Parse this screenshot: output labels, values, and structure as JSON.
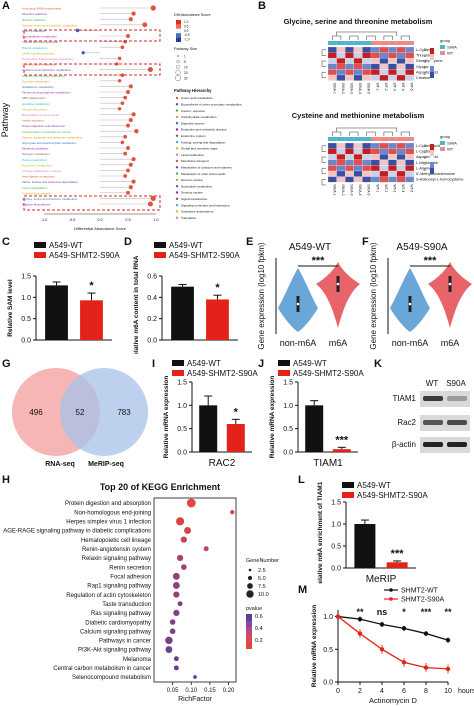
{
  "panel_labels": {
    "A": "A",
    "B": "B",
    "C": "C",
    "D": "D",
    "E": "E",
    "F": "F",
    "G": "G",
    "H": "H",
    "I": "I",
    "J": "J",
    "K": "K",
    "L": "L",
    "M": "M"
  },
  "colors": {
    "wt": "#111111",
    "mut": "#e32219",
    "red": "#e32219",
    "violin_blue": "#6aa6d8",
    "violin_red": "#e8636a",
    "venn_left": "#f4a9a8",
    "venn_right": "#a7c2ea",
    "dot_high": "#e2463c",
    "dot_low": "#5b3fa0"
  },
  "legend": {
    "wt": "A549-WT",
    "mut": "A549-SHMT2-S90A",
    "shmt2_wt": "SHMT2-WT",
    "shmt2_mut": "SHMT2-S90A"
  },
  "panelA": {
    "ylabel": "Pathway",
    "xlabel": "Differential Abundance Score",
    "xticks": [
      "-1.0",
      "-0.5",
      "0.0",
      "0.5",
      "1.0"
    ],
    "legend_title1": "Diff Abundance Score",
    "legend_scale": [
      "1.0",
      "0.5",
      "0.0",
      "-0.5",
      "-1.0"
    ],
    "legend_title2": "Pathway Size",
    "size_legend": [
      "1",
      "5",
      "10",
      "20",
      "30"
    ],
    "hierarchy_title": "Pathway Hierarchy",
    "hierarchy": [
      "Amino acid metabolism",
      "Biosynthesis of other secondary metabolites",
      "Cancer: overview",
      "Carbohydrate metabolism",
      "Digestive system",
      "Endocrine and metabolic disease",
      "Endocrine system",
      "Folding, sorting and degradation",
      "Global and overview maps",
      "Lipid metabolism",
      "Membrane transport",
      "Metabolism of cofactors and vitamins",
      "Metabolism of other amino acids",
      "Nervous system",
      "Nucleotide metabolism",
      "Sensory system",
      "Signal transduction",
      "Signaling molecules and interaction",
      "Substance dependence",
      "Translation"
    ],
    "pathways": [
      "Aminoacyl-tRNA biosynthesis",
      "Morphine addiction",
      "Nicotine addiction",
      "Glycine, serine and threonine metabolism",
      "Sulfur metabolism",
      "Phenylalanine metabolism",
      "Thyroid hormone synthesis",
      "Phenyl metabolism",
      "cAMP signaling pathway",
      "Neuroactive ligand-receptor interaction",
      "D-Amino acid metabolism",
      "Cysteine and methionine metabolism",
      "Arginine and proline metabolism",
      "Tyrosine metabolism",
      "Glutathione metabolism",
      "Taurine and hypotaurine metabolism",
      "ABC transporters",
      "Histidine metabolism",
      "Mineral absorption",
      "Biosynthesis of amino acids",
      "Insulin secretion",
      "Protein digestion and absorption",
      "Central carbon metabolism in cancer",
      "Alanine, aspartate and glutamate metabolism",
      "Glyoxylate and dicarboxylate metabolism",
      "Metabolic pathways",
      "Nitrogen metabolism",
      "Purine metabolism",
      "Pyrimidine metabolism",
      "Choline metabolism in cancer",
      "beta-Alanine metabolism",
      "Valine, leucine and isoleucine degradation",
      "Lysine degradation",
      "Arginine biosynthesis",
      "Glycine, serine and threonine metabolism",
      "Arginine biosynthesis"
    ]
  },
  "panelB": {
    "title1": "Glycine, serine and threonine metabolism",
    "title2": "Cysteine and methionine metabolism",
    "group_title": "group",
    "groups": [
      "S90A",
      "WT"
    ],
    "rows1": [
      "L-Cysteine",
      "Threonine",
      "Dimethylglycine",
      "Glycine",
      "Aspartic acid",
      "Creatine"
    ],
    "rows2": [
      "L-Cysteic acid",
      "L-Cysteine",
      "Aspartic acid",
      "L-Methionine",
      "L-Alanine",
      "5'-Methylthioadenosine",
      "S-Adenosyl-L-homocysteine"
    ],
    "cols": [
      "S90A-1",
      "S90A-2",
      "S90A-3",
      "S90A-4",
      "S90A-5",
      "WT-1",
      "WT-2",
      "WT-3",
      "WT-4",
      "WT-5"
    ],
    "scale": [
      "2",
      "1",
      "0",
      "-1",
      "-2"
    ]
  },
  "chart_data": [
    {
      "type": "bar",
      "panel": "C",
      "categories": [
        "A549-WT",
        "A549-SHMT2-S90A"
      ],
      "values": [
        1.28,
        0.93
      ],
      "errors": [
        0.08,
        0.17
      ],
      "ylabel": "Relative SAM level",
      "ylim": [
        0,
        1.5
      ],
      "yticks": [
        "0.0",
        "0.5",
        "1.0",
        "1.5"
      ],
      "annotations": [
        "*"
      ]
    },
    {
      "type": "bar",
      "panel": "D",
      "categories": [
        "A549-WT",
        "A549-SHMT2-S90A"
      ],
      "values": [
        0.5,
        0.38
      ],
      "errors": [
        0.02,
        0.04
      ],
      "ylabel": "Relative m6A content in total RNA",
      "ylim": [
        0,
        0.6
      ],
      "yticks": [
        "0.0",
        "0.2",
        "0.4",
        "0.6"
      ],
      "annotations": [
        "*"
      ]
    },
    {
      "type": "violin",
      "panel": "E",
      "title": "A549-WT",
      "categories": [
        "non-m6A",
        "m6A"
      ],
      "ylabel": "Gene expression (log10 fpkm)",
      "annotations": [
        "***"
      ]
    },
    {
      "type": "violin",
      "panel": "F",
      "title": "A549-S90A",
      "categories": [
        "non-m6A",
        "m6A"
      ],
      "ylabel": "Gene expression (log10 fpkm)",
      "annotations": [
        "***"
      ]
    },
    {
      "type": "venn",
      "panel": "G",
      "sets": [
        "RNA-seq",
        "MeRIP-seq"
      ],
      "values": [
        496,
        52,
        783
      ]
    },
    {
      "type": "bar",
      "panel": "I",
      "categories": [
        "A549-WT",
        "A549-SHMT2-S90A"
      ],
      "values": [
        1.0,
        0.6
      ],
      "errors": [
        0.2,
        0.1
      ],
      "xlabel": "RAC2",
      "ylabel": "Relative mRNA expression",
      "ylim": [
        0,
        1.5
      ],
      "yticks": [
        "0.0",
        "0.5",
        "1.0",
        "1.5"
      ],
      "annotations": [
        "*"
      ]
    },
    {
      "type": "bar",
      "panel": "J",
      "categories": [
        "A549-WT",
        "A549-SHMT2-S90A"
      ],
      "values": [
        1.0,
        0.06
      ],
      "errors": [
        0.1,
        0.04
      ],
      "xlabel": "TIAM1",
      "ylabel": "Relative mRNA expression",
      "ylim": [
        0,
        1.5
      ],
      "yticks": [
        "0.0",
        "0.5",
        "1.0",
        "1.5"
      ],
      "annotations": [
        "***"
      ]
    },
    {
      "type": "bar",
      "panel": "L",
      "categories": [
        "A549-WT",
        "A549-SHMT2-S90A"
      ],
      "values": [
        1.0,
        0.13
      ],
      "errors": [
        0.09,
        0.03
      ],
      "xlabel": "MeRIP",
      "ylabel": "Relative m6A enrichment of TIAM1",
      "ylim": [
        0,
        1.5
      ],
      "yticks": [
        "0.0",
        "0.5",
        "1.0",
        "1.5"
      ],
      "annotations": [
        "***"
      ]
    },
    {
      "type": "scatter",
      "panel": "H",
      "title": "Top 20 of KEGG Enrichment",
      "xlabel": "RichFactor",
      "xticks": [
        "0.05",
        "0.10",
        "0.15",
        "0.20"
      ],
      "xlim": [
        0,
        0.22
      ],
      "categories": [
        "Protein digestion and absorption",
        "Non-homologous end-joining",
        "Herpes simplex virus 1 infection",
        "AGE-RAGE signaling pathway in diabetic complications",
        "Hematopoietic cell lineage",
        "Renin-angiotensin system",
        "Relaxin signaling pathway",
        "Renin secretion",
        "Focal adhesion",
        "Rap1 signaling pathway",
        "Regulation of actin cytoskeleton",
        "Taste transduction",
        "Ras signaling pathway",
        "Diabetic cardiomyopathy",
        "Calcium signaling pathway",
        "Pathways in cancer",
        "PI3K-Akt signaling pathway",
        "Melanoma",
        "Central carbon metabolism in cancer",
        "Selenocompound metabolism"
      ],
      "x": [
        0.1,
        0.21,
        0.07,
        0.09,
        0.08,
        0.14,
        0.07,
        0.08,
        0.06,
        0.06,
        0.06,
        0.07,
        0.06,
        0.05,
        0.05,
        0.04,
        0.04,
        0.06,
        0.06,
        0.11
      ],
      "gene_number": [
        10,
        3,
        9,
        7,
        6,
        4,
        6,
        5,
        7,
        7,
        6,
        4,
        6,
        5,
        5,
        8,
        7,
        4,
        4,
        2
      ],
      "pvalue": [
        0.2,
        0.22,
        0.22,
        0.25,
        0.3,
        0.35,
        0.4,
        0.45,
        0.5,
        0.5,
        0.52,
        0.55,
        0.56,
        0.57,
        0.58,
        0.6,
        0.62,
        0.64,
        0.66,
        0.68
      ],
      "size_legend_title": "GeneNumber",
      "size_legend": [
        "2.5",
        "5.0",
        "7.5",
        "10.0"
      ],
      "color_legend_title": "pvalue",
      "color_legend": [
        "0.6",
        "0.4",
        "0.2"
      ]
    },
    {
      "type": "line",
      "panel": "M",
      "xlabel": "Actinomycin D",
      "xunit": "hours",
      "ylabel": "Relative mRNA expression",
      "x": [
        0,
        2,
        4,
        6,
        8,
        10
      ],
      "xticks": [
        "0",
        "2",
        "4",
        "6",
        "8",
        "10"
      ],
      "yticks": [
        "0.0",
        "0.5",
        "1.0"
      ],
      "ylim": [
        0,
        1.1
      ],
      "series": [
        {
          "name": "SHMT2-WT",
          "values": [
            1.0,
            0.96,
            0.88,
            0.82,
            0.74,
            0.64
          ]
        },
        {
          "name": "SHMT2-S90A",
          "values": [
            1.0,
            0.74,
            0.5,
            0.3,
            0.22,
            0.2
          ]
        }
      ],
      "annotations": [
        "**",
        "ns",
        "*",
        "***",
        "**"
      ]
    }
  ],
  "panelK": {
    "cols": [
      "WT",
      "S90A"
    ],
    "rows": [
      "TIAM1",
      "Rac2",
      "β-actin"
    ]
  }
}
